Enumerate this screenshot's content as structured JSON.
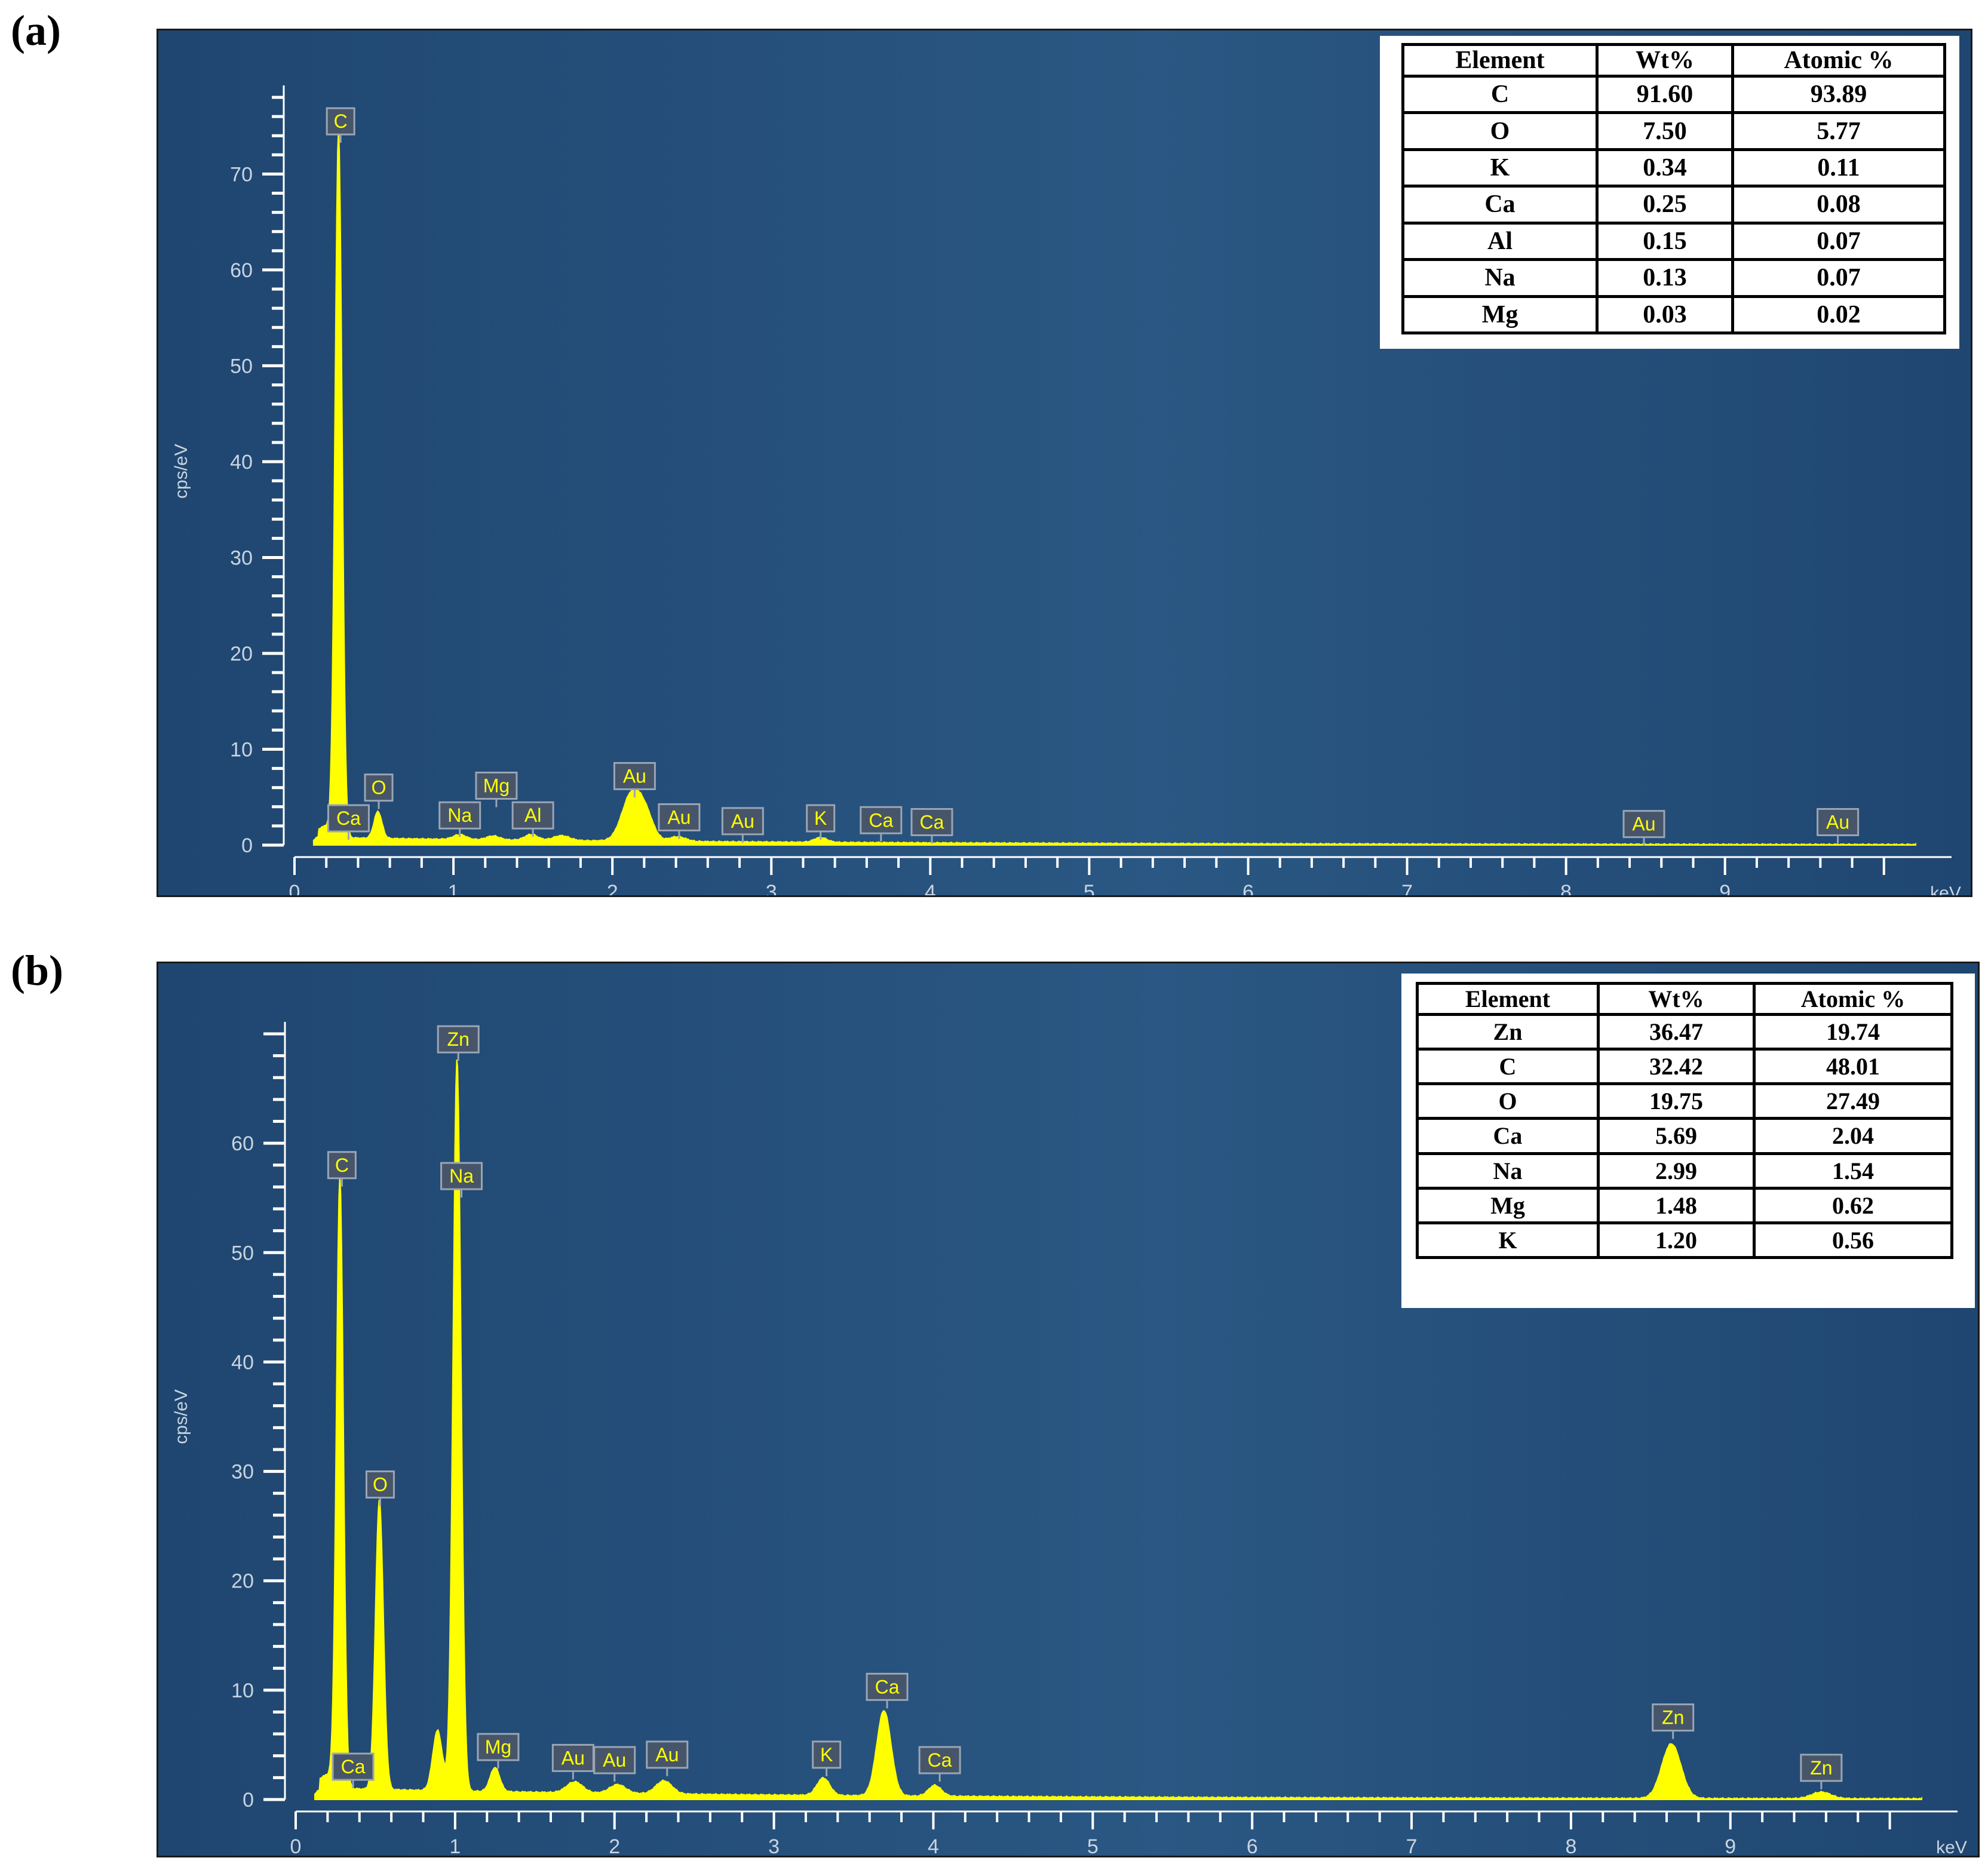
{
  "figure": {
    "panels": [
      {
        "letter": "(a)",
        "yaxis_label": "cps/eV",
        "xaxis_unit": "keV",
        "table": {
          "headers": [
            "Element",
            "Wt%",
            "Atomic %"
          ],
          "rows": [
            [
              "C",
              "91.60",
              "93.89"
            ],
            [
              "O",
              "7.50",
              "5.77"
            ],
            [
              "K",
              "0.34",
              "0.11"
            ],
            [
              "Ca",
              "0.25",
              "0.08"
            ],
            [
              "Al",
              "0.15",
              "0.07"
            ],
            [
              "Na",
              "0.13",
              "0.07"
            ],
            [
              "Mg",
              "0.03",
              "0.02"
            ]
          ]
        }
      },
      {
        "letter": "(b)",
        "yaxis_label": "cps/eV",
        "xaxis_unit": "keV",
        "table": {
          "headers": [
            "Element",
            "Wt%",
            "Atomic %"
          ],
          "rows": [
            [
              "Zn",
              "36.47",
              "19.74"
            ],
            [
              "C",
              "32.42",
              "48.01"
            ],
            [
              "O",
              "19.75",
              "27.49"
            ],
            [
              "Ca",
              "5.69",
              "2.04"
            ],
            [
              "Na",
              "2.99",
              "1.54"
            ],
            [
              "Mg",
              "1.48",
              "0.62"
            ],
            [
              "K",
              "1.20",
              "0.56"
            ]
          ]
        }
      }
    ]
  },
  "colors": {
    "plot_background": "#1f4670",
    "plot_background_light": "#2a5783",
    "spectrum": "#ffff00",
    "axis": "#ffffff",
    "axis_text": "#c9d4e0",
    "label_box_fill": "#47556a",
    "label_box_stroke": "#9aa5b5"
  },
  "chart_data": [
    {
      "type": "area",
      "title": "(a)",
      "xlabel": "keV",
      "ylabel": "cps/eV",
      "xlim": [
        0,
        10.2
      ],
      "ylim": [
        0,
        78
      ],
      "xticks": [
        0,
        1,
        2,
        3,
        4,
        5,
        6,
        7,
        8,
        9
      ],
      "yticks": [
        0,
        10,
        20,
        30,
        40,
        50,
        60,
        70
      ],
      "baseline": 0.6,
      "peaks": [
        {
          "x": 0.277,
          "y": 73.5,
          "w": 0.022
        },
        {
          "x": 0.2,
          "y": 1.2,
          "w": 0.06
        },
        {
          "x": 0.525,
          "y": 2.8,
          "w": 0.025
        },
        {
          "x": 1.04,
          "y": 0.5,
          "w": 0.04
        },
        {
          "x": 1.25,
          "y": 0.4,
          "w": 0.04
        },
        {
          "x": 1.49,
          "y": 0.6,
          "w": 0.04
        },
        {
          "x": 1.68,
          "y": 0.5,
          "w": 0.05
        },
        {
          "x": 2.12,
          "y": 4.8,
          "w": 0.06
        },
        {
          "x": 2.21,
          "y": 2.4,
          "w": 0.05
        },
        {
          "x": 2.41,
          "y": 0.5,
          "w": 0.05
        },
        {
          "x": 3.31,
          "y": 0.5,
          "w": 0.04
        }
      ],
      "peak_labels": [
        {
          "text": "C",
          "x": 0.29,
          "y": 75.5
        },
        {
          "text": "O",
          "x": 0.53,
          "y": 6.0
        },
        {
          "text": "Ca",
          "x": 0.34,
          "y": 2.8
        },
        {
          "text": "Na",
          "x": 1.04,
          "y": 3.1
        },
        {
          "text": "Mg",
          "x": 1.27,
          "y": 6.2
        },
        {
          "text": "Al",
          "x": 1.5,
          "y": 3.1
        },
        {
          "text": "Au",
          "x": 2.14,
          "y": 7.2
        },
        {
          "text": "Au",
          "x": 2.42,
          "y": 2.9
        },
        {
          "text": "Au",
          "x": 2.82,
          "y": 2.5
        },
        {
          "text": "K",
          "x": 3.31,
          "y": 2.8
        },
        {
          "text": "Ca",
          "x": 3.69,
          "y": 2.6
        },
        {
          "text": "Ca",
          "x": 4.01,
          "y": 2.4
        },
        {
          "text": "Au",
          "x": 8.49,
          "y": 2.2
        },
        {
          "text": "Au",
          "x": 9.71,
          "y": 2.4
        }
      ]
    },
    {
      "type": "area",
      "title": "(b)",
      "xlabel": "keV",
      "ylabel": "cps/eV",
      "xlim": [
        0,
        10.2
      ],
      "ylim": [
        0,
        70
      ],
      "xticks": [
        0,
        1,
        2,
        3,
        4,
        5,
        6,
        7,
        8,
        9
      ],
      "yticks": [
        0,
        10,
        20,
        30,
        40,
        50,
        60
      ],
      "baseline": 0.8,
      "peaks": [
        {
          "x": 0.277,
          "y": 55.5,
          "w": 0.022
        },
        {
          "x": 0.2,
          "y": 1.2,
          "w": 0.06
        },
        {
          "x": 0.525,
          "y": 26.5,
          "w": 0.025
        },
        {
          "x": 0.89,
          "y": 5.5,
          "w": 0.03
        },
        {
          "x": 1.012,
          "y": 67.0,
          "w": 0.025
        },
        {
          "x": 1.25,
          "y": 2.2,
          "w": 0.03
        },
        {
          "x": 1.75,
          "y": 1.0,
          "w": 0.05
        },
        {
          "x": 2.02,
          "y": 0.8,
          "w": 0.05
        },
        {
          "x": 2.31,
          "y": 1.2,
          "w": 0.05
        },
        {
          "x": 3.31,
          "y": 1.6,
          "w": 0.04
        },
        {
          "x": 3.69,
          "y": 7.8,
          "w": 0.045
        },
        {
          "x": 4.01,
          "y": 1.0,
          "w": 0.04
        },
        {
          "x": 8.63,
          "y": 5.0,
          "w": 0.06
        },
        {
          "x": 9.57,
          "y": 0.6,
          "w": 0.06
        }
      ],
      "peak_labels": [
        {
          "text": "Zn",
          "x": 1.02,
          "y": 69.5
        },
        {
          "text": "C",
          "x": 0.29,
          "y": 58.0
        },
        {
          "text": "Na",
          "x": 1.04,
          "y": 57.0
        },
        {
          "text": "O",
          "x": 0.53,
          "y": 28.8
        },
        {
          "text": "Mg",
          "x": 1.27,
          "y": 4.8
        },
        {
          "text": "Ca",
          "x": 0.36,
          "y": 3.0
        },
        {
          "text": "Au",
          "x": 1.74,
          "y": 3.8
        },
        {
          "text": "Au",
          "x": 2.0,
          "y": 3.6
        },
        {
          "text": "Au",
          "x": 2.33,
          "y": 4.1
        },
        {
          "text": "K",
          "x": 3.33,
          "y": 4.1
        },
        {
          "text": "Ca",
          "x": 3.71,
          "y": 10.3
        },
        {
          "text": "Ca",
          "x": 4.04,
          "y": 3.6
        },
        {
          "text": "Zn",
          "x": 8.64,
          "y": 7.5
        },
        {
          "text": "Zn",
          "x": 9.57,
          "y": 2.9
        }
      ]
    }
  ]
}
